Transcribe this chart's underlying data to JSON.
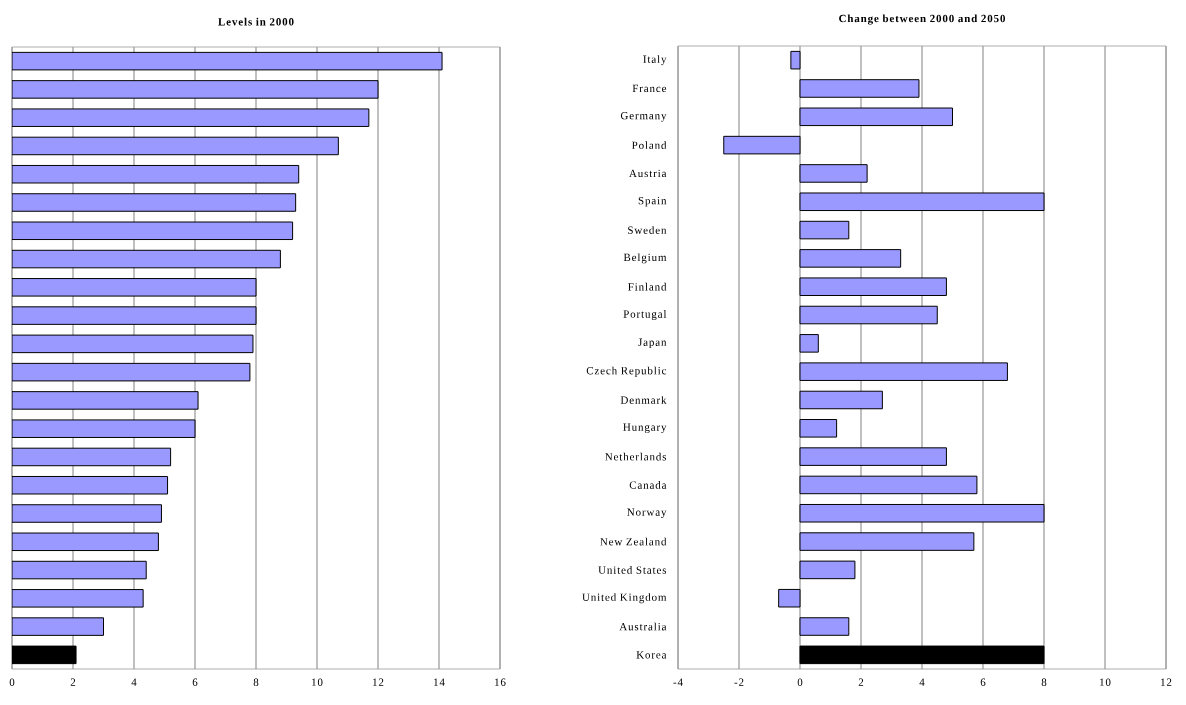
{
  "chart_data": [
    {
      "type": "bar",
      "orientation": "horizontal",
      "title": "Levels in 2000",
      "categories": [
        null,
        null,
        null,
        null,
        null,
        null,
        null,
        null,
        null,
        null,
        null,
        null,
        null,
        null,
        null,
        null,
        null,
        null,
        null,
        null,
        null,
        null
      ],
      "values": [
        14.1,
        12.0,
        11.7,
        10.7,
        9.4,
        9.3,
        9.2,
        8.8,
        8.0,
        8.0,
        7.9,
        7.8,
        6.1,
        6.0,
        5.2,
        5.1,
        4.9,
        4.8,
        4.4,
        4.3,
        3.0,
        2.1
      ],
      "colors": [
        "#9999ff",
        "#9999ff",
        "#9999ff",
        "#9999ff",
        "#9999ff",
        "#9999ff",
        "#9999ff",
        "#9999ff",
        "#9999ff",
        "#9999ff",
        "#9999ff",
        "#9999ff",
        "#9999ff",
        "#9999ff",
        "#9999ff",
        "#9999ff",
        "#9999ff",
        "#9999ff",
        "#9999ff",
        "#9999ff",
        "#9999ff",
        "#000000"
      ],
      "xlim": [
        0,
        16
      ],
      "xticks": [
        0,
        2,
        4,
        6,
        8,
        10,
        12,
        14,
        16
      ],
      "grid": "x",
      "tick_labels": "x"
    },
    {
      "type": "bar",
      "orientation": "horizontal",
      "title": "Change between 2000 and 2050",
      "categories": [
        "Italy",
        "France",
        "Germany",
        "Poland",
        "Austria",
        "Spain",
        "Sweden",
        "Belgium",
        "Finland",
        "Portugal",
        "Japan",
        "Czech Republic",
        "Denmark",
        "Hungary",
        "Netherlands",
        "Canada",
        "Norway",
        "New Zealand",
        "United States",
        "United Kingdom",
        "Australia",
        "Korea"
      ],
      "values": [
        -0.3,
        3.9,
        5.0,
        -2.5,
        2.2,
        8.0,
        1.6,
        3.3,
        4.8,
        4.5,
        0.6,
        6.8,
        2.7,
        1.2,
        4.8,
        5.8,
        8.0,
        5.7,
        1.8,
        -0.7,
        1.6,
        8.0
      ],
      "colors": [
        "#9999ff",
        "#9999ff",
        "#9999ff",
        "#9999ff",
        "#9999ff",
        "#9999ff",
        "#9999ff",
        "#9999ff",
        "#9999ff",
        "#9999ff",
        "#9999ff",
        "#9999ff",
        "#9999ff",
        "#9999ff",
        "#9999ff",
        "#9999ff",
        "#9999ff",
        "#9999ff",
        "#9999ff",
        "#9999ff",
        "#9999ff",
        "#000000"
      ],
      "xlim": [
        -4,
        12
      ],
      "xticks": [
        -4,
        -2,
        0,
        2,
        4,
        6,
        8,
        10,
        12
      ],
      "grid": "x"
    }
  ]
}
